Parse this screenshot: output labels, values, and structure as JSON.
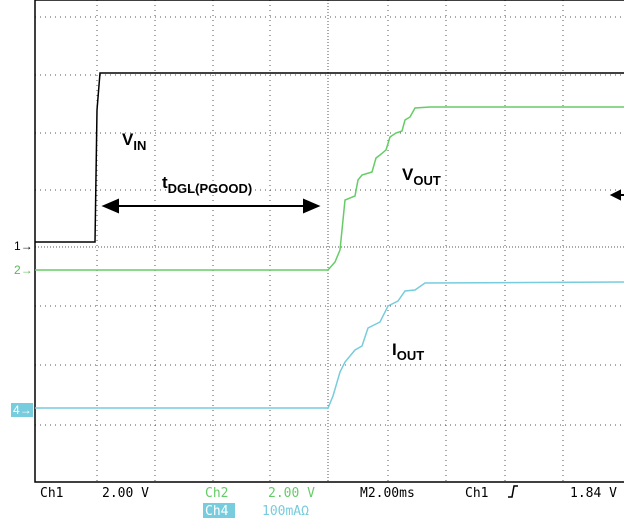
{
  "markers": {
    "ch1": "1",
    "ch2": "2",
    "ch4": "4"
  },
  "annotations": {
    "vin": {
      "main": "V",
      "sub": "IN"
    },
    "tdgl": {
      "main": "t",
      "sub": "DGL(PGOOD)"
    },
    "vout": {
      "main": "V",
      "sub": "OUT"
    },
    "iout": {
      "main": "I",
      "sub": "OUT"
    }
  },
  "status": {
    "ch1": "Ch1",
    "ch1_scale": "2.00 V",
    "ch2": "Ch2",
    "ch2_scale": "2.00 V",
    "timebase": "M2.00ms",
    "trigger_source": "Ch1",
    "trigger_level": "1.84 V",
    "ch4": "Ch4",
    "ch4_scale": "100mAΩ"
  }
}
